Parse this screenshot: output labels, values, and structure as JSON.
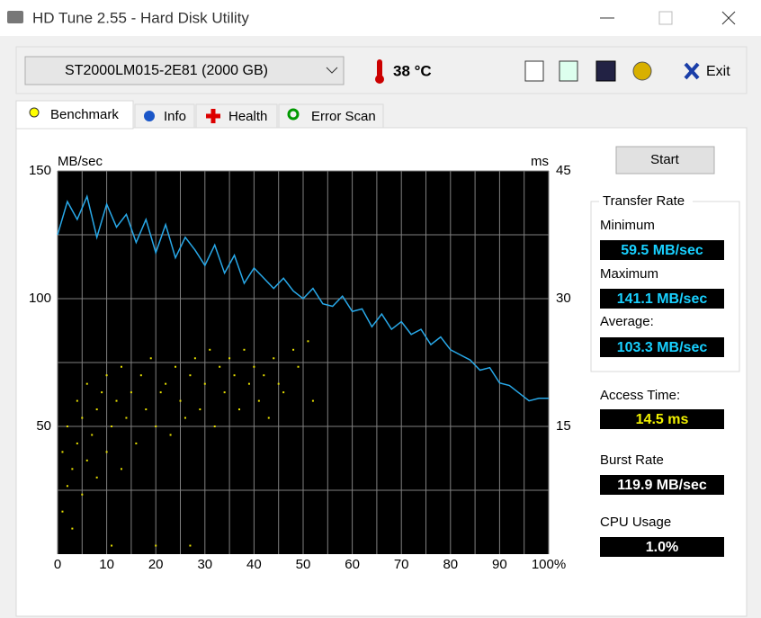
{
  "window": {
    "title": "HD Tune 2.55 - Hard Disk Utility"
  },
  "toolbar": {
    "drive": "ST2000LM015-2E81 (2000 GB)",
    "temperature": "38 °C",
    "exit": "Exit"
  },
  "tabs": [
    "Benchmark",
    "Info",
    "Health",
    "Error Scan"
  ],
  "chart_data": {
    "type": "line",
    "y_label": "MB/sec",
    "y2_label": "ms",
    "xlim": [
      0,
      100
    ],
    "xticks": [
      0,
      10,
      20,
      30,
      40,
      50,
      60,
      70,
      80,
      90,
      {
        "value": 100,
        "label": "100%"
      }
    ],
    "x_minor_ticks": [
      5,
      15,
      25,
      35,
      45,
      55,
      65,
      75,
      85,
      95
    ],
    "ylim": [
      0,
      150
    ],
    "yticks": [
      50,
      100,
      150
    ],
    "y_minor_ticks": [
      25,
      75,
      125
    ],
    "y2lim": [
      0,
      45
    ],
    "y2ticks": [
      15,
      30,
      45
    ],
    "grid": true,
    "series": [
      {
        "name": "Transfer Rate",
        "color": "#28a8e8",
        "x": [
          0,
          2,
          4,
          6,
          8,
          10,
          12,
          14,
          16,
          18,
          20,
          22,
          24,
          26,
          28,
          30,
          32,
          34,
          36,
          38,
          40,
          42,
          44,
          46,
          48,
          50,
          52,
          54,
          56,
          58,
          60,
          62,
          64,
          66,
          68,
          70,
          72,
          74,
          76,
          78,
          80,
          82,
          84,
          86,
          88,
          90,
          92,
          94,
          96,
          98,
          100
        ],
        "values": [
          125,
          138,
          131,
          140,
          124,
          137,
          128,
          133,
          122,
          131,
          118,
          129,
          116,
          124,
          119,
          113,
          121,
          110,
          117,
          106,
          112,
          108,
          104,
          108,
          103,
          100,
          104,
          98,
          97,
          101,
          95,
          96,
          89,
          94,
          88,
          91,
          86,
          88,
          82,
          85,
          80,
          78,
          76,
          72,
          73,
          67,
          66,
          63,
          60,
          61,
          61
        ]
      },
      {
        "name": "Access Time",
        "type": "scatter",
        "axis": "y2",
        "color": "#e8e000",
        "x": [
          1,
          1,
          2,
          2,
          3,
          3,
          4,
          4,
          5,
          5,
          6,
          6,
          7,
          8,
          8,
          9,
          10,
          10,
          11,
          12,
          13,
          13,
          14,
          15,
          16,
          17,
          18,
          19,
          20,
          21,
          22,
          23,
          24,
          25,
          26,
          27,
          28,
          29,
          30,
          31,
          32,
          33,
          34,
          35,
          36,
          37,
          38,
          39,
          40,
          41,
          42,
          43,
          44,
          45,
          46,
          48,
          49,
          51,
          52,
          27,
          11,
          20
        ],
        "values": [
          5,
          12,
          8,
          15,
          3,
          10,
          13,
          18,
          7,
          16,
          11,
          20,
          14,
          9,
          17,
          19,
          12,
          21,
          15,
          18,
          10,
          22,
          16,
          19,
          13,
          21,
          17,
          23,
          15,
          19,
          20,
          14,
          22,
          18,
          16,
          21,
          23,
          17,
          20,
          24,
          15,
          22,
          19,
          23,
          21,
          17,
          24,
          20,
          22,
          18,
          21,
          16,
          23,
          20,
          19,
          24,
          22,
          25,
          18,
          1,
          1,
          1
        ]
      }
    ]
  },
  "panel": {
    "start": "Start",
    "transfer_rate": "Transfer Rate",
    "minimum_label": "Minimum",
    "minimum": "59.5 MB/sec",
    "maximum_label": "Maximum",
    "maximum": "141.1 MB/sec",
    "average_label": "Average:",
    "average": "103.3 MB/sec",
    "access_time_label": "Access Time:",
    "access_time": "14.5 ms",
    "burst_rate_label": "Burst Rate",
    "burst_rate": "119.9 MB/sec",
    "cpu_usage_label": "CPU Usage",
    "cpu_usage": "1.0%"
  }
}
